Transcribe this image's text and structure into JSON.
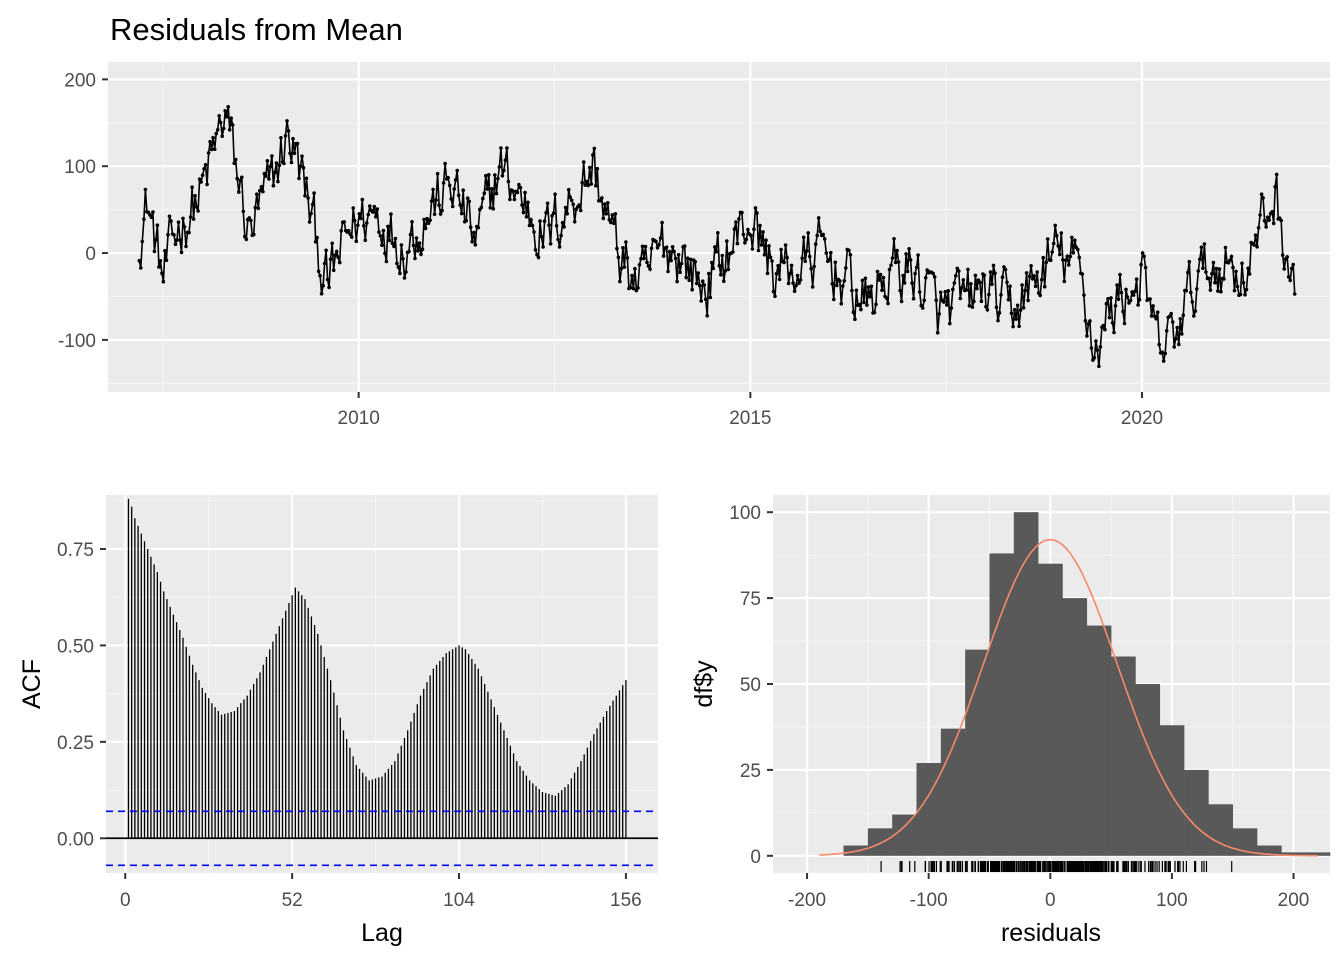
{
  "chart_data": [
    {
      "type": "line",
      "title": "Residuals from Mean",
      "xlabel": "",
      "ylabel": "",
      "xlim": [
        2006.8,
        2022.4
      ],
      "ylim": [
        -160,
        220
      ],
      "x_ticks": [
        "2010",
        "2015",
        "2020"
      ],
      "y_ticks": [
        "-100",
        "0",
        "100",
        "200"
      ],
      "grid": true,
      "series_color": "#000000",
      "key_points": {
        "x": [
          2007.2,
          2007.3,
          2007.5,
          2007.7,
          2008.0,
          2008.3,
          2008.6,
          2008.9,
          2009.1,
          2009.3,
          2009.6,
          2009.9,
          2010.2,
          2010.6,
          2010.9,
          2011.2,
          2011.5,
          2011.8,
          2012.1,
          2012.4,
          2012.7,
          2013.0,
          2013.3,
          2013.6,
          2013.9,
          2014.1,
          2014.4,
          2014.7,
          2015.0,
          2015.3,
          2015.6,
          2015.9,
          2016.2,
          2016.5,
          2016.8,
          2017.1,
          2017.4,
          2017.7,
          2018.0,
          2018.3,
          2018.6,
          2018.9,
          2019.2,
          2019.4,
          2019.7,
          2020.0,
          2020.2,
          2020.4,
          2020.7,
          2021.0,
          2021.3,
          2021.5,
          2021.7,
          2021.95
        ],
        "y": [
          20,
          60,
          -30,
          30,
          70,
          160,
          20,
          80,
          140,
          80,
          -40,
          30,
          50,
          10,
          50,
          80,
          10,
          100,
          60,
          20,
          60,
          100,
          0,
          -40,
          10,
          0,
          -40,
          0,
          40,
          -20,
          -20,
          0,
          -30,
          -60,
          -20,
          -20,
          -70,
          -60,
          -40,
          -70,
          -40,
          0,
          -20,
          -110,
          -50,
          -30,
          -110,
          -100,
          -30,
          -10,
          -20,
          20,
          70,
          -50
        ]
      }
    },
    {
      "type": "bar",
      "title": "",
      "xlabel": "Lag",
      "ylabel": "ACF",
      "xlim": [
        -6,
        166
      ],
      "ylim": [
        -0.09,
        0.89
      ],
      "x_ticks": [
        "0",
        "52",
        "104",
        "156"
      ],
      "y_ticks": [
        "0.00",
        "0.25",
        "0.50",
        "0.75"
      ],
      "ci_bound": 0.07,
      "ci_color": "#0000ff",
      "key_points": {
        "lag": [
          1,
          2,
          3,
          4,
          5,
          6,
          8,
          10,
          12,
          15,
          18,
          21,
          24,
          27,
          30,
          34,
          38,
          42,
          46,
          50,
          53,
          56,
          60,
          64,
          68,
          72,
          76,
          80,
          84,
          88,
          92,
          96,
          100,
          104,
          106,
          110,
          114,
          118,
          122,
          126,
          130,
          134,
          138,
          142,
          146,
          150,
          156
        ],
        "acf": [
          0.88,
          0.86,
          0.83,
          0.81,
          0.79,
          0.77,
          0.73,
          0.69,
          0.64,
          0.58,
          0.52,
          0.45,
          0.39,
          0.35,
          0.32,
          0.33,
          0.37,
          0.43,
          0.51,
          0.59,
          0.65,
          0.62,
          0.53,
          0.41,
          0.28,
          0.19,
          0.15,
          0.16,
          0.2,
          0.28,
          0.37,
          0.44,
          0.48,
          0.5,
          0.49,
          0.44,
          0.36,
          0.28,
          0.2,
          0.15,
          0.12,
          0.11,
          0.14,
          0.2,
          0.27,
          0.33,
          0.41
        ]
      }
    },
    {
      "type": "bar",
      "title": "",
      "xlabel": "residuals",
      "ylabel": "df$y",
      "xlim": [
        -228,
        230
      ],
      "ylim": [
        -5,
        105
      ],
      "x_ticks": [
        "-200",
        "-100",
        "0",
        "100",
        "200"
      ],
      "y_ticks": [
        "0",
        "25",
        "50",
        "75",
        "100"
      ],
      "bar_color": "#595959",
      "curve_color": "#f8896b",
      "bin_width": 20,
      "bin_lefts": [
        -170,
        -150,
        -130,
        -110,
        -90,
        -70,
        -50,
        -30,
        -10,
        10,
        30,
        50,
        70,
        90,
        110,
        130,
        150,
        170,
        190,
        210
      ],
      "counts": [
        3,
        8,
        12,
        27,
        37,
        60,
        88,
        100,
        85,
        75,
        67,
        58,
        50,
        38,
        25,
        15,
        8,
        3,
        1,
        1
      ],
      "normal_curve": {
        "mean": 0,
        "sd": 55,
        "peak": 92,
        "x_range": [
          -190,
          220
        ]
      }
    }
  ]
}
